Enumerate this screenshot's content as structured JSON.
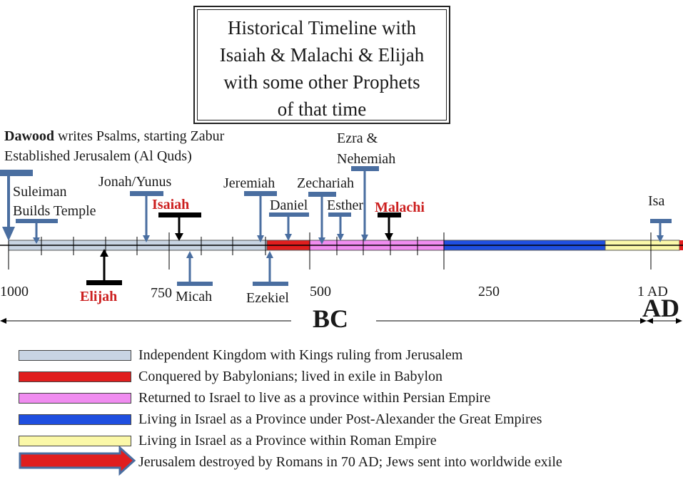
{
  "title": "Historical Timeline with\nIsaiah & Malachi & Elijah\nwith some other Prophets\nof that time",
  "dawood_name": "Dawood",
  "dawood_rest": " writes Psalms, starting Zabur",
  "dawood_line2": "Established Jerusalem (Al Quds)",
  "labels": {
    "suleiman": "Suleiman\nBuilds Temple",
    "jonah": "Jonah/Yunus",
    "isaiah": "Isaiah",
    "jeremiah": "Jeremiah",
    "ezra": "Ezra &\nNehemiah",
    "zechariah": "Zechariah",
    "daniel": "Daniel",
    "esther": "Esther",
    "malachi": "Malachi",
    "isa": "Isa",
    "elijah": "Elijah",
    "micah": "Micah",
    "ezekiel": "Ezekiel"
  },
  "axis_ticks": [
    "1000",
    "750",
    "500",
    "250",
    "1 AD"
  ],
  "era_bc": "BC",
  "era_ad": "AD",
  "colors": {
    "kingdom": "#c8d4e3",
    "babylon": "#e01e1e",
    "persian": "#f08cf0",
    "greek": "#1f4fe0",
    "roman": "#fbf8a8",
    "marker": "#4a6ea0",
    "black": "#000000"
  },
  "legend": [
    {
      "color": "#c8d4e3",
      "text": "Independent Kingdom with Kings ruling from Jerusalem"
    },
    {
      "color": "#e01e1e",
      "text": "Conquered by Babylonians; lived in exile in Babylon"
    },
    {
      "color": "#f08cf0",
      "text": "Returned to Israel to live as a province within Persian Empire"
    },
    {
      "color": "#1f4fe0",
      "text": "Living in Israel as a Province under Post-Alexander the Great Empires"
    },
    {
      "color": "#fbf8a8",
      "text": "Living in Israel as a Province within Roman Empire"
    },
    {
      "color": "#e01e1e",
      "text": "Jerusalem destroyed by Romans in 70 AD; Jews sent into worldwide exile",
      "shape": "arrow"
    }
  ]
}
